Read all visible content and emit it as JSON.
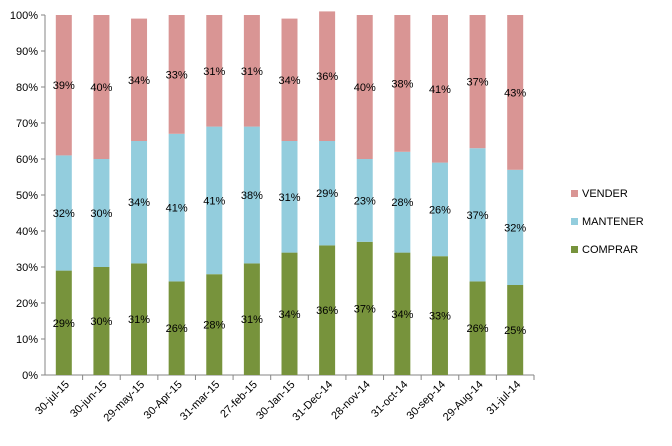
{
  "chart_data": {
    "type": "bar",
    "stacked": true,
    "categories": [
      "30-jul-15",
      "30-jun-15",
      "29-may-15",
      "30-Apr-15",
      "31-mar-15",
      "27-feb-15",
      "30-Jan-15",
      "31-Dec-14",
      "28-nov-14",
      "31-oct-14",
      "30-sep-14",
      "29-Aug-14",
      "31-jul-14"
    ],
    "series": [
      {
        "name": "COMPRAR",
        "color": "#77933C",
        "values": [
          29,
          30,
          31,
          26,
          28,
          31,
          34,
          36,
          37,
          34,
          33,
          26,
          25
        ]
      },
      {
        "name": "MANTENER",
        "color": "#93CDDD",
        "values": [
          32,
          30,
          34,
          41,
          41,
          38,
          31,
          29,
          23,
          28,
          26,
          37,
          32
        ]
      },
      {
        "name": "VENDER",
        "color": "#D99594",
        "values": [
          39,
          40,
          34,
          33,
          31,
          31,
          34,
          36,
          40,
          38,
          41,
          37,
          43
        ]
      }
    ],
    "value_labels": {
      "COMPRAR": [
        "29%",
        "30%",
        "31%",
        "26%",
        "28%",
        "31%",
        "34%",
        "36%",
        "37%",
        "34%",
        "33%",
        "26%",
        "25%"
      ],
      "MANTENER": [
        "32%",
        "30%",
        "34%",
        "41%",
        "41%",
        "38%",
        "31%",
        "29%",
        "23%",
        "28%",
        "26%",
        "37%",
        "32%"
      ],
      "VENDER": [
        "39%",
        "40%",
        "34%",
        "33%",
        "31%",
        "31%",
        "34%",
        "36%",
        "40%",
        "38%",
        "41%",
        "37%",
        "43%"
      ]
    },
    "y_ticks": [
      "0%",
      "10%",
      "20%",
      "30%",
      "40%",
      "50%",
      "60%",
      "70%",
      "80%",
      "90%",
      "100%"
    ],
    "ylim": [
      0,
      100
    ],
    "legend_position": "right",
    "legend_order": [
      "VENDER",
      "MANTENER",
      "COMPRAR"
    ],
    "grid": false,
    "title": "",
    "xlabel": "",
    "ylabel": ""
  }
}
